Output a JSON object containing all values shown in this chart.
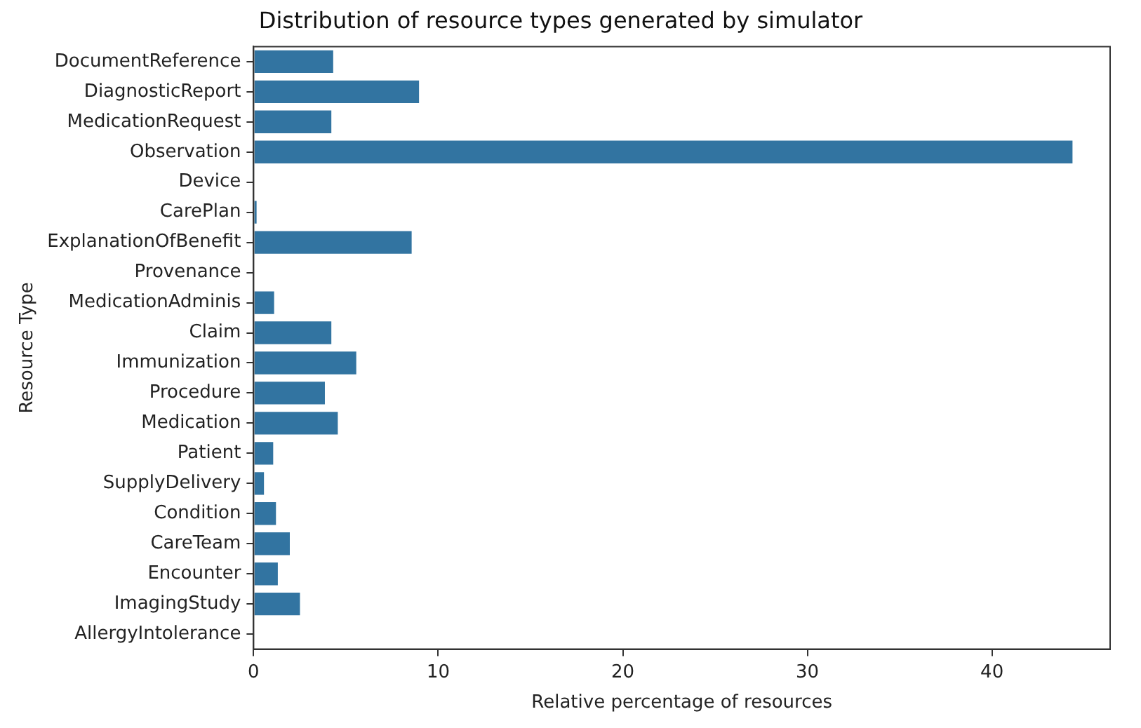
{
  "chart_data": {
    "type": "bar",
    "orientation": "horizontal",
    "title": "Distribution of resource types generated by simulator",
    "xlabel": "Relative percentage of resources",
    "ylabel": "Resource Type",
    "categories": [
      "DocumentReference",
      "DiagnosticReport",
      "MedicationRequest",
      "Observation",
      "Device",
      "CarePlan",
      "ExplanationOfBenefit",
      "Provenance",
      "MedicationAdminis",
      "Claim",
      "Immunization",
      "Procedure",
      "Medication",
      "Patient",
      "SupplyDelivery",
      "Condition",
      "CareTeam",
      "Encounter",
      "ImagingStudy",
      "AllergyIntolerance"
    ],
    "values": [
      4.35,
      9.0,
      4.25,
      44.4,
      0,
      0.2,
      8.6,
      0,
      1.15,
      4.25,
      5.6,
      3.9,
      4.6,
      1.1,
      0.6,
      1.25,
      2.0,
      1.35,
      2.55,
      0
    ],
    "color": "#3274a1",
    "xlim": [
      0,
      46.4
    ],
    "xticks": [
      0,
      10,
      20,
      30,
      40
    ],
    "grid": false,
    "legend": false
  }
}
